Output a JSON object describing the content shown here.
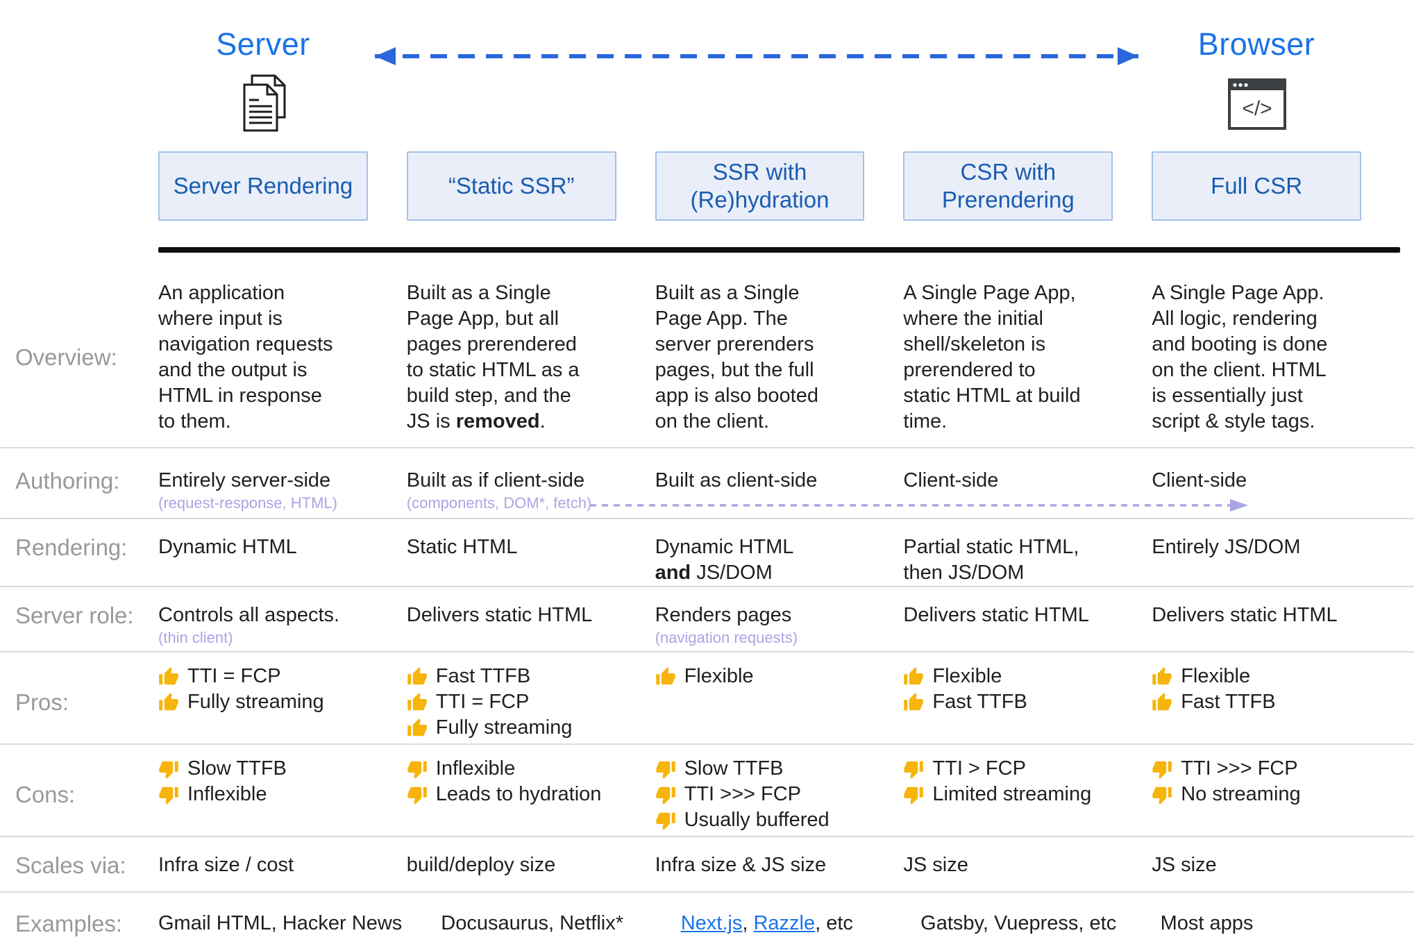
{
  "top": {
    "server_label": "Server",
    "browser_label": "Browser",
    "server_icon": "documents-icon",
    "browser_icon": "browser-window-code-icon",
    "arrow_icon": "dashed-double-arrow"
  },
  "colors": {
    "endpoint_blue": "#1a73e8",
    "header_text_blue": "#1a5cb0",
    "header_box_fill": "#e9eef9",
    "header_box_border": "#a6c0e6",
    "purple_annotation": "#aaa5e3",
    "thumb_gold": "#f6b40c",
    "link_blue": "#1a73e8",
    "divider_gray": "#dadada",
    "black_bar": "#0f0f0f",
    "label_gray": "#97999c"
  },
  "columns": [
    {
      "title": "Server Rendering"
    },
    {
      "title": "“Static SSR”"
    },
    {
      "title": "SSR with (Re)hydration"
    },
    {
      "title": "CSR with Prerendering"
    },
    {
      "title": "Full CSR"
    }
  ],
  "row_labels": {
    "overview": "Overview:",
    "authoring": "Authoring:",
    "rendering": "Rendering:",
    "server_role": "Server role:",
    "pros": "Pros:",
    "cons": "Cons:",
    "scales": "Scales via:",
    "examples": "Examples:"
  },
  "overview": {
    "c1": "An application\nwhere input is\nnavigation requests\nand the output is\nHTML in response\nto them.",
    "c2_pre": "Built as a Single\nPage App, but all\npages prerendered\nto static HTML as a\nbuild step, and the\nJS is ",
    "c2_bold": "removed",
    "c2_post": ".",
    "c3": "Built as a Single\nPage App. The\nserver prerenders\npages, but the full\napp is also booted\non the client.",
    "c4": "A Single Page App,\nwhere the initial\nshell/skeleton is\nprerendered to\nstatic HTML at build\ntime.",
    "c5": "A Single Page App.\nAll logic, rendering\nand booting is done\non the client. HTML\nis essentially just\nscript & style tags."
  },
  "authoring": {
    "c1": "Entirely server-side",
    "c1_sub": "(request-response, HTML)",
    "c2": "Built as if client-side",
    "c2_sub": "(components, DOM*, fetch)",
    "c3": "Built as client-side",
    "c4": "Client-side",
    "c5": "Client-side"
  },
  "rendering": {
    "c1": "Dynamic HTML",
    "c2": "Static HTML",
    "c3_l1": "Dynamic HTML\n",
    "c3_bold": "and",
    "c3_post": " JS/DOM",
    "c4": "Partial static HTML,\nthen JS/DOM",
    "c5": "Entirely JS/DOM"
  },
  "server_role": {
    "c1": "Controls all aspects.",
    "c1_sub": "(thin client)",
    "c2": "Delivers static HTML",
    "c3": "Renders pages",
    "c3_sub": "(navigation requests)",
    "c4": "Delivers static HTML",
    "c5": "Delivers static HTML"
  },
  "pros": {
    "icon": "thumbs-up-icon",
    "c1": [
      "TTI = FCP",
      "Fully streaming"
    ],
    "c2": [
      "Fast TTFB",
      "TTI = FCP",
      "Fully streaming"
    ],
    "c3": [
      "Flexible"
    ],
    "c4": [
      "Flexible",
      "Fast TTFB"
    ],
    "c5": [
      "Flexible",
      "Fast TTFB"
    ]
  },
  "cons": {
    "icon": "thumbs-down-icon",
    "c1": [
      "Slow TTFB",
      "Inflexible"
    ],
    "c2": [
      "Inflexible",
      "Leads to hydration"
    ],
    "c3": [
      "Slow TTFB",
      "TTI >>> FCP",
      "Usually buffered"
    ],
    "c4": [
      "TTI > FCP",
      "Limited streaming"
    ],
    "c5": [
      "TTI >>> FCP",
      "No streaming"
    ]
  },
  "scales": {
    "c1": "Infra size / cost",
    "c2": "build/deploy size",
    "c3": "Infra size & JS size",
    "c4": "JS size",
    "c5": "JS size"
  },
  "examples": {
    "c1": "Gmail HTML, Hacker News",
    "c2": "Docusaurus, Netflix*",
    "c3_link1": "Next.js",
    "c3_sep": ", ",
    "c3_link2": "Razzle",
    "c3_post": ", etc",
    "c4": "Gatsby, Vuepress, etc",
    "c5": "Most apps"
  }
}
